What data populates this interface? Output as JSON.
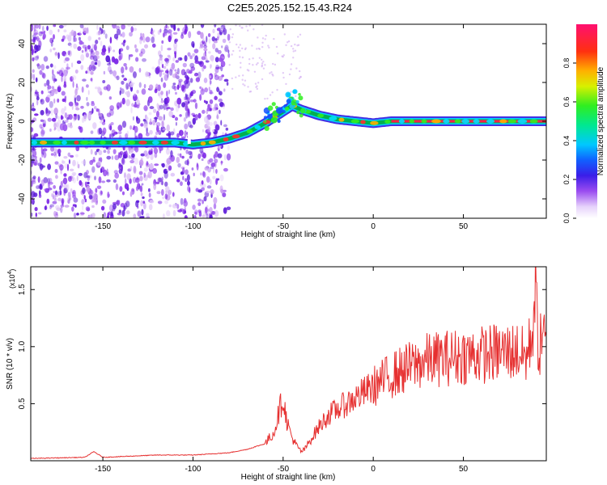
{
  "title": "C2E5.2025.152.15.43.R24",
  "colors": {
    "track": "#ff1f4b",
    "track_edge": "#00b050",
    "snr_line": "#e63030",
    "speckle": "#7a22e6",
    "speckle_light": "#c89af0"
  },
  "chart_data": [
    {
      "type": "heatmap",
      "xlabel": "Height of straight line (km)",
      "ylabel": "Frequency (Hz)",
      "xlim": [
        -190,
        96
      ],
      "ylim": [
        -50,
        50
      ],
      "xticks": [
        -150,
        -100,
        -50,
        0,
        50
      ],
      "yticks": [
        -40,
        -20,
        0,
        20,
        40
      ],
      "xtick_labels": [
        "-150",
        "-100",
        "-50",
        "0",
        "50"
      ],
      "ytick_labels": [
        "-40",
        "-20",
        "0",
        "20",
        "40"
      ],
      "ridge": {
        "x": [
          -190,
          -150,
          -110,
          -100,
          -90,
          -80,
          -70,
          -60,
          -50,
          -45,
          -40,
          -30,
          -20,
          -10,
          0,
          10,
          20,
          40,
          60,
          80,
          96
        ],
        "y": [
          -11,
          -11,
          -11,
          -12,
          -11,
          -9,
          -6,
          -1,
          5,
          8,
          6,
          3,
          1,
          0,
          -1,
          0,
          0,
          0,
          0,
          0,
          0
        ]
      },
      "colorbar": {
        "label": "Normalized spectral amplitude",
        "range": [
          0,
          1
        ],
        "ticks": [
          0.0,
          0.2,
          0.4,
          0.6,
          0.8
        ],
        "tick_labels": [
          "0.0",
          "0.2",
          "0.4",
          "0.6",
          "0.8"
        ]
      },
      "grid": false
    },
    {
      "type": "line",
      "xlabel": "Height of straight line (km)",
      "ylabel": "SNR (10 * v/v)",
      "yscale_label": "(x10",
      "yscale_exp": "4",
      "xlim": [
        -190,
        96
      ],
      "ylim": [
        0,
        1.7
      ],
      "xticks": [
        -150,
        -100,
        -50,
        0,
        50
      ],
      "yticks": [
        0.5,
        1.0,
        1.5
      ],
      "xtick_labels": [
        "-150",
        "-100",
        "-50",
        "0",
        "50"
      ],
      "ytick_labels": [
        "0.5",
        "1.0",
        "1.5"
      ],
      "series": [
        {
          "x": [
            -190,
            -160,
            -155,
            -150,
            -120,
            -100,
            -80,
            -70,
            -60,
            -55,
            -52,
            -50,
            -48,
            -45,
            -42,
            -40,
            -38,
            -35,
            -30,
            -25,
            -20,
            -15,
            -10,
            -5,
            0,
            5,
            10,
            20,
            30,
            40,
            50,
            60,
            70,
            80,
            85,
            88,
            90,
            92,
            94,
            96
          ],
          "y": [
            0.02,
            0.03,
            0.08,
            0.03,
            0.05,
            0.05,
            0.07,
            0.1,
            0.15,
            0.25,
            0.45,
            0.55,
            0.35,
            0.2,
            0.12,
            0.08,
            0.1,
            0.18,
            0.3,
            0.4,
            0.45,
            0.5,
            0.55,
            0.6,
            0.65,
            0.7,
            0.75,
            0.82,
            0.88,
            0.9,
            0.92,
            0.93,
            0.95,
            0.96,
            0.9,
            1.1,
            1.5,
            0.9,
            1.2,
            0.9
          ]
        }
      ],
      "grid": false
    }
  ]
}
